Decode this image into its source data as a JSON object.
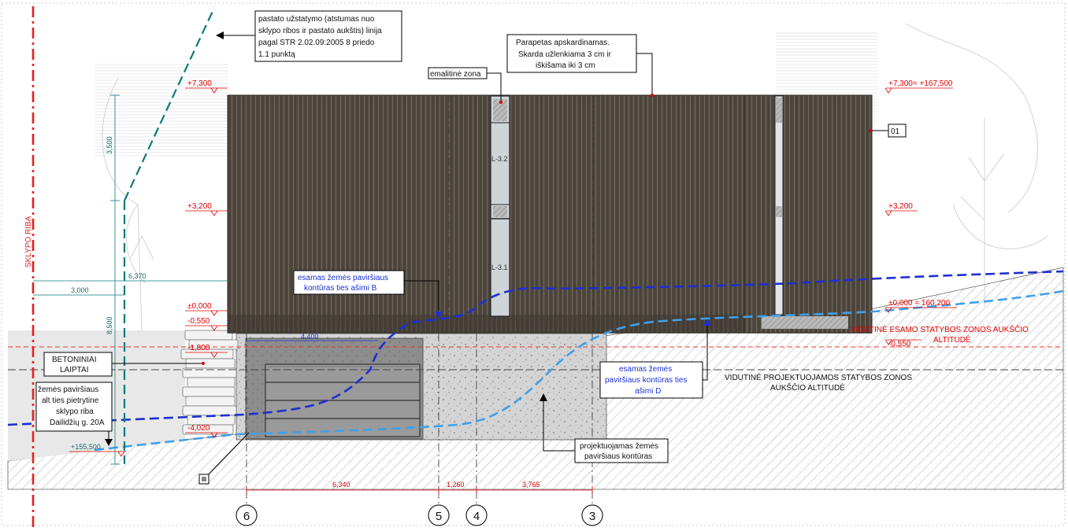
{
  "colors": {
    "facade": "#4d463e",
    "facade_line": "#6b645a",
    "plot_line": "#e52222",
    "green_line": "#0f7a7a",
    "existing_ground": "#1f2fd0",
    "projected_ground": "#3fa0ea",
    "level_red": "#e00000"
  },
  "labels": {
    "setback_note": [
      "pastato užstatymo (atstumas nuo",
      "sklypo ribos ir pastato aukštis) linija",
      "pagal STR 2.02.09:2005 8 priedo",
      "1.1 punktą"
    ],
    "parapet_note": [
      "Parapetas apskardinamas.",
      "Skarda užlenkiama 3 cm ir",
      "iškišama iki 3 cm"
    ],
    "enamel_zone": "emalitinė zona",
    "material_tag": "01",
    "plot_boundary": "SKLYPO RIBA",
    "concrete_stairs": [
      "BETONINIAI",
      "LAIPTAI"
    ],
    "ground_alt_note": [
      "žemės paviršiaus",
      "alt ties pietrytine",
      "sklypo riba",
      "Dailidžių g. 20A"
    ],
    "existing_ground_B": [
      "esamas žemės paviršiaus",
      "kontūras ties ašimi B"
    ],
    "existing_ground_D": [
      "esamas žemės",
      "paviršiaus kontūras ties",
      "ašimi D"
    ],
    "projected_ground": [
      "projektuojamas žemės",
      "paviršiaus kontūras"
    ],
    "avg_existing_zone": [
      "VIDUTINĖ ESAMO STATYBOS ZONOS AUKŠČIO",
      "ALTITUDĖ"
    ],
    "avg_projected_zone": [
      "VIDUTINĖ PROJEKTUOJAMOS STATYBOS ZONOS",
      "AUKŠČIO ALTITUDĖ"
    ],
    "window_marks": [
      "L-3.2",
      "L-3.1"
    ],
    "square_marker": "□"
  },
  "levels": {
    "top_left": "+7,300",
    "top_right": "+7,300= +167,500",
    "mid_left": "+3,200",
    "mid_right": "+3,200",
    "zero_left": "±0,000",
    "zero_right": "±0,000 = 160,200",
    "minus_0550_left": "-0,550",
    "minus_0550_right": "-0,550",
    "minus_1800": "-1,800",
    "minus_4020": "-4,020",
    "ground_alt": "+155,500"
  },
  "dimensions": {
    "green_3500": "3,500",
    "green_8500": "8,500",
    "green_6370": "6,370",
    "green_3000": "3,000",
    "blue_4400": "4,400",
    "bottom": [
      "6,340",
      "1,260",
      "3,765"
    ]
  },
  "axes": [
    "6",
    "5",
    "4",
    "3"
  ]
}
